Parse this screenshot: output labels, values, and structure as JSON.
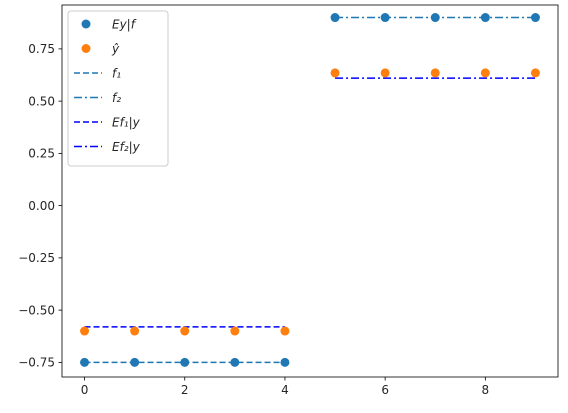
{
  "chart_data": {
    "type": "scatter",
    "title": "",
    "xlabel": "",
    "ylabel": "",
    "xlim": [
      -0.45,
      9.45
    ],
    "ylim": [
      -0.82,
      0.96
    ],
    "xticks": [
      0,
      2,
      4,
      6,
      8
    ],
    "xtick_labels": [
      "0",
      "2",
      "4",
      "6",
      "8"
    ],
    "yticks": [
      -0.75,
      -0.5,
      -0.25,
      0.0,
      0.25,
      0.5,
      0.75
    ],
    "ytick_labels": [
      "−0.75",
      "−0.50",
      "−0.25",
      "0.00",
      "0.25",
      "0.50",
      "0.75"
    ],
    "grid": false,
    "legend_position": "top-left",
    "scatter_series": [
      {
        "name": "Ey|f",
        "color": "#1f77b4",
        "x": [
          0,
          1,
          2,
          3,
          4,
          5,
          6,
          7,
          8,
          9
        ],
        "y": [
          -0.75,
          -0.75,
          -0.75,
          -0.75,
          -0.75,
          0.9,
          0.9,
          0.9,
          0.9,
          0.9
        ]
      },
      {
        "name": "ŷ",
        "color": "#ff7f0e",
        "x": [
          0,
          1,
          2,
          3,
          4,
          5,
          6,
          7,
          8,
          9
        ],
        "y": [
          -0.6,
          -0.6,
          -0.6,
          -0.6,
          -0.6,
          0.635,
          0.635,
          0.635,
          0.635,
          0.635
        ]
      }
    ],
    "line_series": [
      {
        "name": "f₁",
        "color": "#1f77b4",
        "dash": "dashed",
        "x": [
          0,
          4
        ],
        "y": [
          -0.75,
          -0.75
        ]
      },
      {
        "name": "f₂",
        "color": "#1f77b4",
        "dash": "dashdot",
        "x": [
          5,
          9
        ],
        "y": [
          0.9,
          0.9
        ]
      },
      {
        "name": "Ef₁|y",
        "color": "#0000ff",
        "dash": "dashed",
        "x": [
          0,
          4
        ],
        "y": [
          -0.58,
          -0.58
        ]
      },
      {
        "name": "Ef₂|y",
        "color": "#0000ff",
        "dash": "dashdot",
        "x": [
          5,
          9
        ],
        "y": [
          0.61,
          0.61
        ]
      }
    ]
  }
}
